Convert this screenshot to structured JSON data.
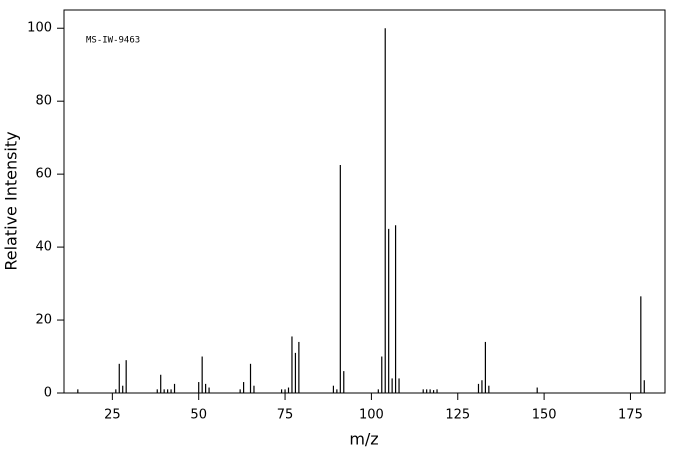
{
  "chart_data": {
    "type": "stem",
    "annotation": "MS-IW-9463",
    "x_label": "m/z",
    "y_label": "Relative Intensity",
    "color": "#000000",
    "xlim": [
      11,
      185
    ],
    "ylim": [
      0,
      105
    ],
    "xticks": [
      25,
      50,
      75,
      100,
      125,
      150,
      175
    ],
    "yticks": [
      0,
      20,
      40,
      60,
      80,
      100
    ],
    "x": [
      15,
      26,
      27,
      28,
      29,
      38,
      39,
      40,
      41,
      42,
      43,
      50,
      51,
      52,
      53,
      62,
      63,
      65,
      66,
      74,
      75,
      76,
      77,
      78,
      79,
      89,
      90,
      91,
      92,
      102,
      103,
      104,
      105,
      106,
      107,
      108,
      115,
      116,
      117,
      118,
      119,
      131,
      132,
      133,
      134,
      148,
      178,
      179
    ],
    "values": [
      1,
      1,
      8,
      2,
      9,
      1,
      5,
      1,
      1,
      1,
      2.5,
      3,
      10,
      2.5,
      1.5,
      1,
      3,
      8,
      2,
      1,
      1,
      1.5,
      15.5,
      11,
      14,
      2,
      1,
      62.5,
      6,
      1,
      10,
      100,
      45,
      4,
      46,
      4,
      1,
      1,
      1,
      0.8,
      1,
      2.5,
      3.5,
      14,
      2,
      1.5,
      26.5,
      3.5
    ]
  }
}
